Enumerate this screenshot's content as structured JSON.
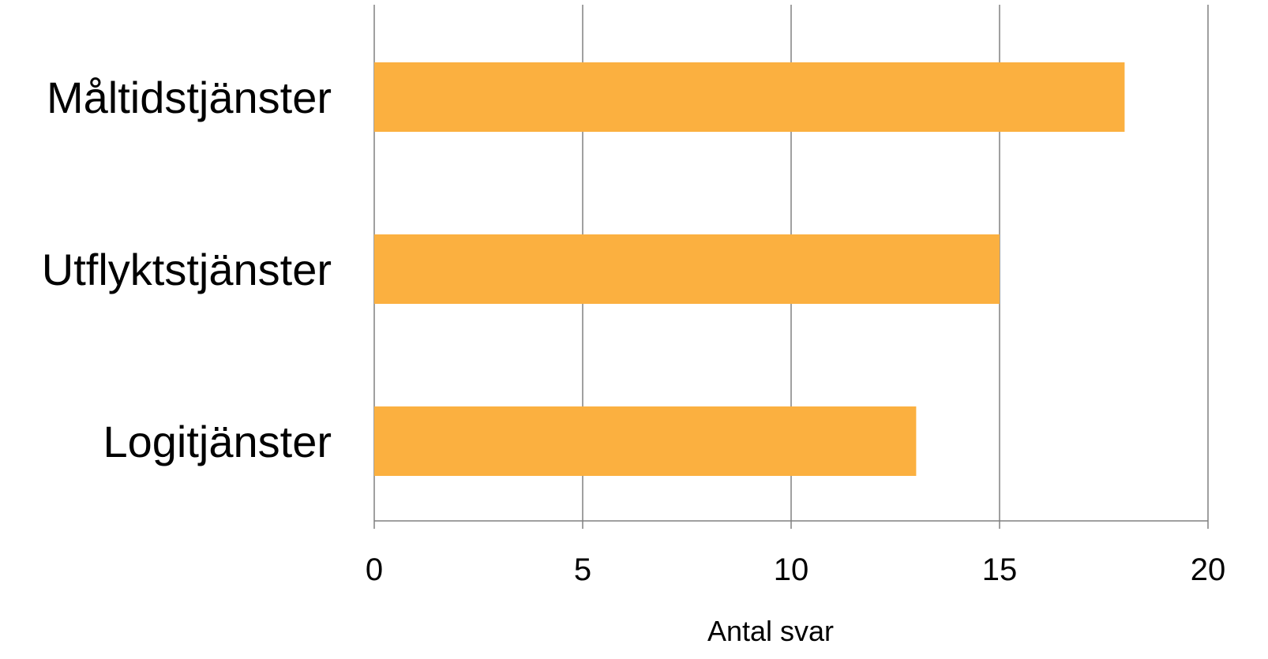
{
  "chart_data": {
    "type": "bar",
    "orientation": "horizontal",
    "categories": [
      "Måltidstjänster",
      "Utflyktstjänster",
      "Logitjänster"
    ],
    "series": [
      {
        "values": [
          18,
          15,
          13
        ]
      }
    ],
    "xlabel": "Antal svar",
    "ylabel": "",
    "xlim": [
      0,
      20
    ],
    "x_ticks": [
      "0",
      "5",
      "10",
      "15",
      "20"
    ],
    "grid": "vertical",
    "legend": "none",
    "colors": {
      "bar": "#FBB040",
      "grid": "#808080"
    }
  }
}
